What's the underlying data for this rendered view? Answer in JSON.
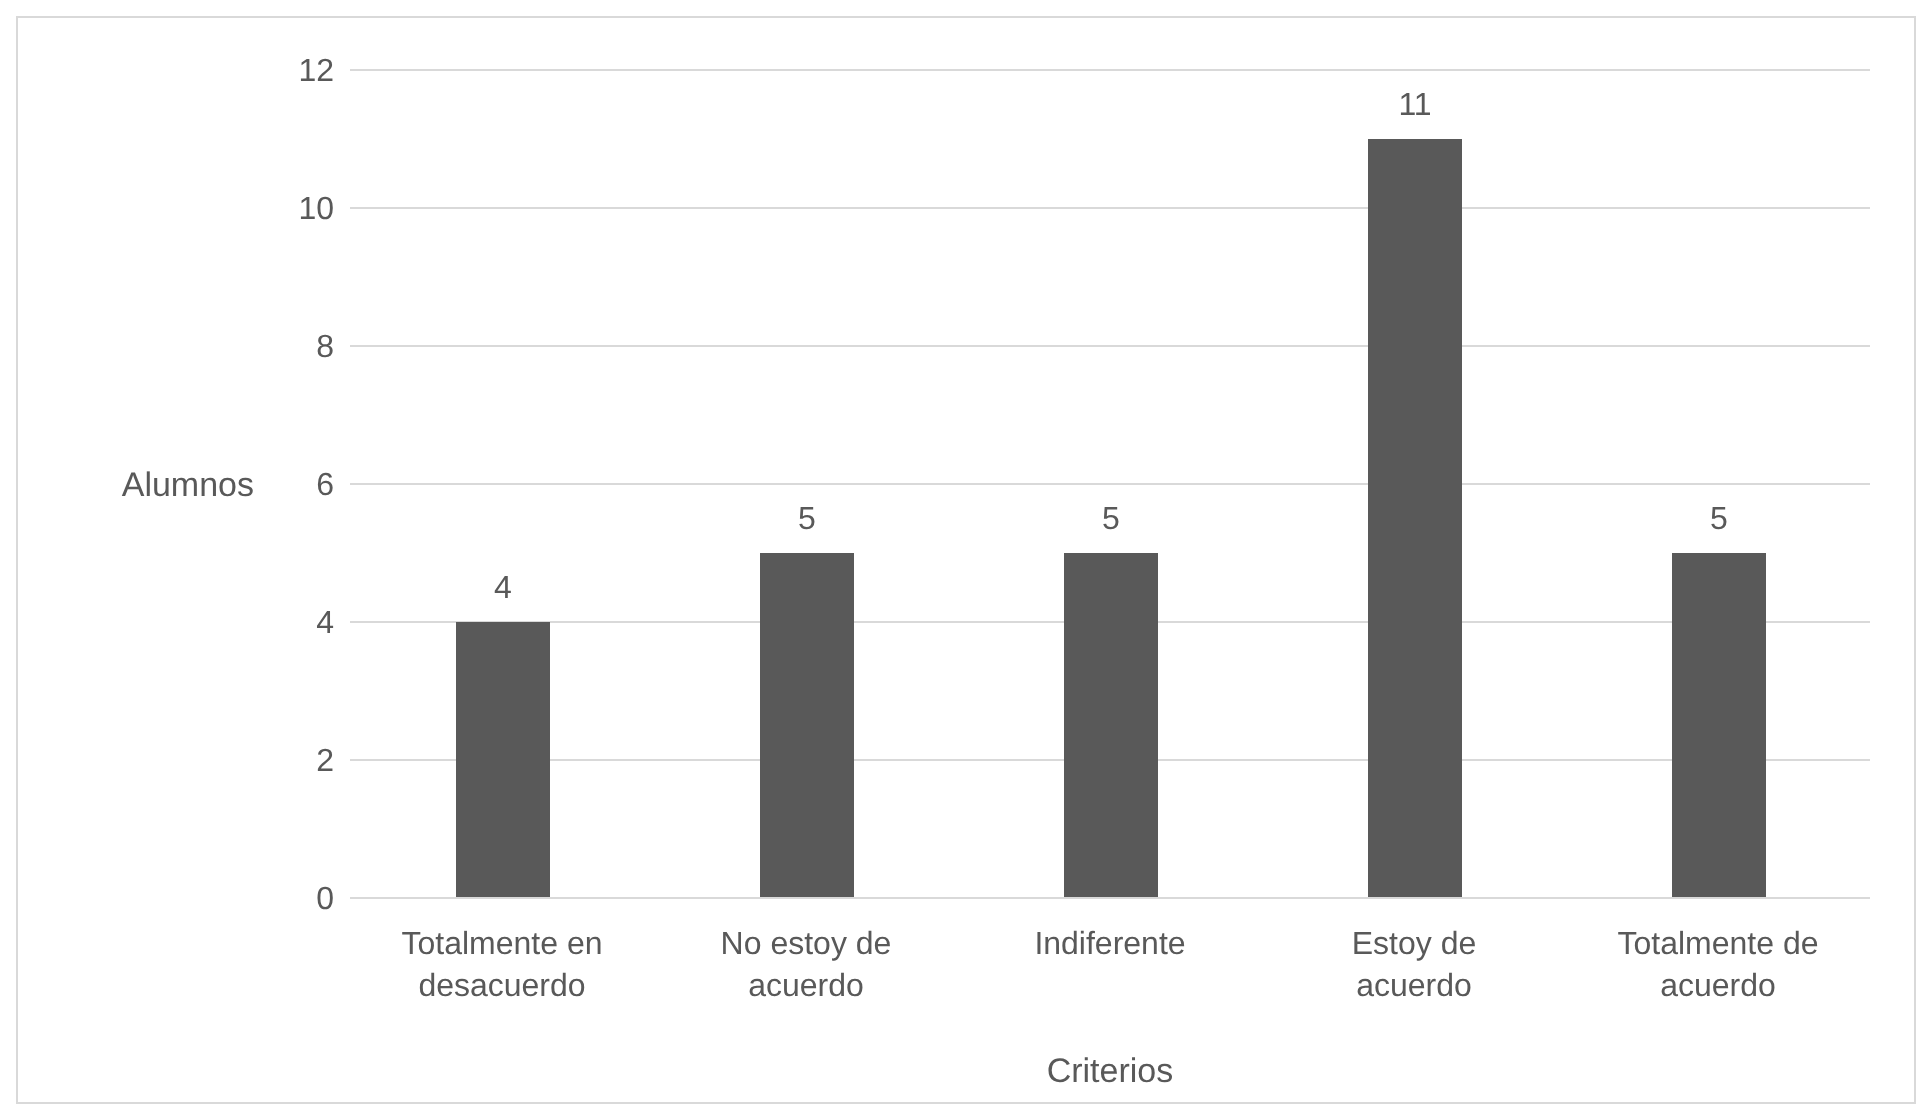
{
  "chart_data": {
    "type": "bar",
    "xlabel": "Criterios",
    "ylabel": "Alumnos",
    "categories": [
      "Totalmente en desacuerdo",
      "No estoy de acuerdo",
      "Indiferente",
      "Estoy de acuerdo",
      "Totalmente de acuerdo"
    ],
    "values": [
      4,
      5,
      5,
      11,
      5
    ],
    "color": "#595959",
    "ylim": [
      0,
      12
    ],
    "yticks": [
      0,
      2,
      4,
      6,
      8,
      10,
      12
    ],
    "grid": "y",
    "data_labels": true,
    "legend": false
  }
}
